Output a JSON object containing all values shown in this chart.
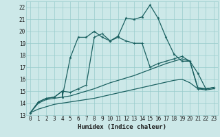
{
  "title": "",
  "xlabel": "Humidex (Indice chaleur)",
  "bg_color": "#cce8e8",
  "grid_color": "#99cccc",
  "line_color": "#1a6060",
  "xlim": [
    -0.5,
    23.5
  ],
  "ylim": [
    13,
    22.5
  ],
  "xticks": [
    0,
    1,
    2,
    3,
    4,
    5,
    6,
    7,
    8,
    9,
    10,
    11,
    12,
    13,
    14,
    15,
    16,
    17,
    18,
    19,
    20,
    21,
    22,
    23
  ],
  "yticks": [
    13,
    14,
    15,
    16,
    17,
    18,
    19,
    20,
    21,
    22
  ],
  "curve1_x": [
    0,
    1,
    2,
    3,
    4,
    4,
    5,
    6,
    7,
    8,
    9,
    10,
    11,
    12,
    13,
    14,
    15,
    16,
    17,
    18,
    19,
    20,
    21,
    22,
    23
  ],
  "curve1_y": [
    13.2,
    14.1,
    14.4,
    14.5,
    15.0,
    14.5,
    17.8,
    19.5,
    19.5,
    20.0,
    19.5,
    19.2,
    19.6,
    21.1,
    21.0,
    21.2,
    22.2,
    21.1,
    19.5,
    18.1,
    17.5,
    17.5,
    16.5,
    15.2,
    15.3
  ],
  "curve2_x": [
    0,
    1,
    2,
    3,
    4,
    5,
    6,
    7,
    8,
    9,
    10,
    11,
    12,
    13,
    14,
    15,
    16,
    17,
    18,
    19,
    20,
    21,
    22,
    23
  ],
  "curve2_y": [
    13.2,
    14.1,
    14.4,
    14.5,
    15.0,
    14.9,
    15.2,
    15.5,
    19.5,
    19.8,
    19.2,
    19.5,
    19.2,
    19.0,
    19.0,
    17.0,
    17.3,
    17.5,
    17.7,
    17.9,
    17.5,
    15.2,
    15.2,
    15.3
  ],
  "curve3_x": [
    0,
    1,
    2,
    3,
    4,
    5,
    6,
    7,
    8,
    9,
    10,
    11,
    12,
    13,
    14,
    15,
    16,
    17,
    18,
    19,
    20,
    21,
    22,
    23
  ],
  "curve3_y": [
    13.2,
    14.0,
    14.3,
    14.4,
    14.5,
    14.6,
    14.8,
    15.0,
    15.2,
    15.45,
    15.7,
    15.9,
    16.1,
    16.3,
    16.55,
    16.8,
    17.05,
    17.3,
    17.5,
    17.7,
    17.5,
    15.3,
    15.2,
    15.3
  ],
  "curve4_x": [
    0,
    1,
    2,
    3,
    4,
    5,
    6,
    7,
    8,
    9,
    10,
    11,
    12,
    13,
    14,
    15,
    16,
    17,
    18,
    19,
    20,
    21,
    22,
    23
  ],
  "curve4_y": [
    13.2,
    13.5,
    13.7,
    13.9,
    14.0,
    14.1,
    14.2,
    14.3,
    14.4,
    14.55,
    14.7,
    14.85,
    15.0,
    15.15,
    15.3,
    15.45,
    15.6,
    15.75,
    15.9,
    16.0,
    15.7,
    15.2,
    15.1,
    15.2
  ]
}
